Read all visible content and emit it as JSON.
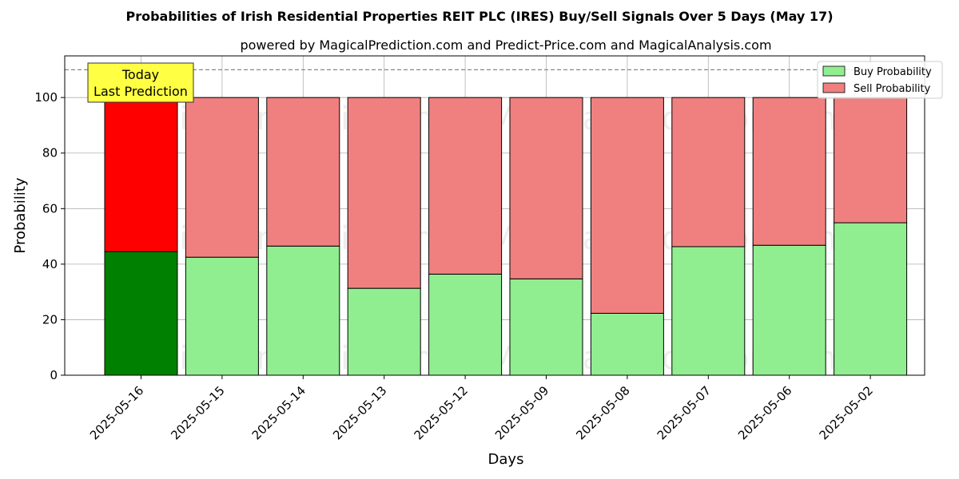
{
  "chart_data": {
    "type": "bar",
    "stacked": true,
    "title": "Probabilities of Irish Residential Properties REIT PLC (IRES) Buy/Sell Signals Over 5 Days (May 17)",
    "subtitle": "powered by MagicalPrediction.com and Predict-Price.com and MagicalAnalysis.com",
    "xlabel": "Days",
    "ylabel": "Probability",
    "categories": [
      "2025-05-16",
      "2025-05-15",
      "2025-05-14",
      "2025-05-13",
      "2025-05-12",
      "2025-05-09",
      "2025-05-08",
      "2025-05-07",
      "2025-05-06",
      "2025-05-02"
    ],
    "series": [
      {
        "name": "Buy Probability",
        "values": [
          44.5,
          42.5,
          46.5,
          31.3,
          36.4,
          34.7,
          22.3,
          46.3,
          46.8,
          54.9
        ]
      },
      {
        "name": "Sell Probability",
        "values": [
          55.5,
          57.5,
          53.5,
          68.7,
          63.6,
          65.3,
          77.7,
          53.7,
          53.2,
          45.1
        ]
      }
    ],
    "ylim": [
      0,
      115
    ],
    "yticks": [
      0,
      20,
      40,
      60,
      80,
      100
    ],
    "reference_line": 110,
    "grid": true,
    "legend_position": "top-right",
    "highlight_index": 0,
    "annotation": {
      "line1": "Today",
      "line2": "Last Prediction"
    },
    "colors": {
      "buy": "#90ee90",
      "sell": "#f08080",
      "buy_highlight": "#008000",
      "sell_highlight": "#ff0000",
      "annotation_bg": "#ffff44"
    },
    "watermarks": [
      "MagicalAnalysis.com",
      "MagicalPrediction.com"
    ]
  }
}
